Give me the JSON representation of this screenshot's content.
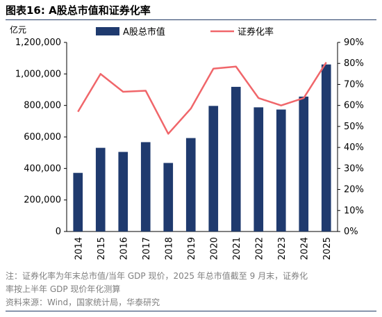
{
  "figure": {
    "title": "图表16:  A股总市值和证券化率",
    "note_line1": "注：证券化率为年末总市值/当年 GDP 现价，2025 年总市值截至 9 月末，证券化",
    "note_line2": "率按上半年 GDP 现价年化测算",
    "source": "资料来源：Wind，国家统计局，华泰研究"
  },
  "colors": {
    "bar": "#1f3a6e",
    "line": "#f0666a",
    "rule": "#1f3864",
    "note": "#7f7f7f"
  },
  "chart_data": {
    "type": "bar+line",
    "categories": [
      "2014",
      "2015",
      "2016",
      "2017",
      "2018",
      "2019",
      "2020",
      "2021",
      "2022",
      "2023",
      "2024",
      "2025"
    ],
    "series": [
      {
        "name": "A股总市值",
        "type": "bar",
        "axis": "left",
        "values": [
          372000,
          531000,
          505000,
          567000,
          435000,
          593000,
          797000,
          918000,
          788000,
          774000,
          856000,
          1060000
        ]
      },
      {
        "name": "证券化率",
        "type": "line",
        "axis": "right",
        "values": [
          0.57,
          0.75,
          0.665,
          0.67,
          0.465,
          0.585,
          0.775,
          0.785,
          0.635,
          0.6,
          0.635,
          0.805
        ]
      }
    ],
    "left_axis": {
      "unit_label": "亿元",
      "ylim": [
        0,
        1200000
      ],
      "ticks": [
        "0",
        "200,000",
        "400,000",
        "600,000",
        "800,000",
        "1,000,000",
        "1,200,000"
      ]
    },
    "right_axis": {
      "ylim": [
        0,
        0.9
      ],
      "ticks": [
        "0%",
        "10%",
        "20%",
        "30%",
        "40%",
        "50%",
        "60%",
        "70%",
        "80%",
        "90%"
      ]
    },
    "legend_position": "top",
    "grid": false
  }
}
